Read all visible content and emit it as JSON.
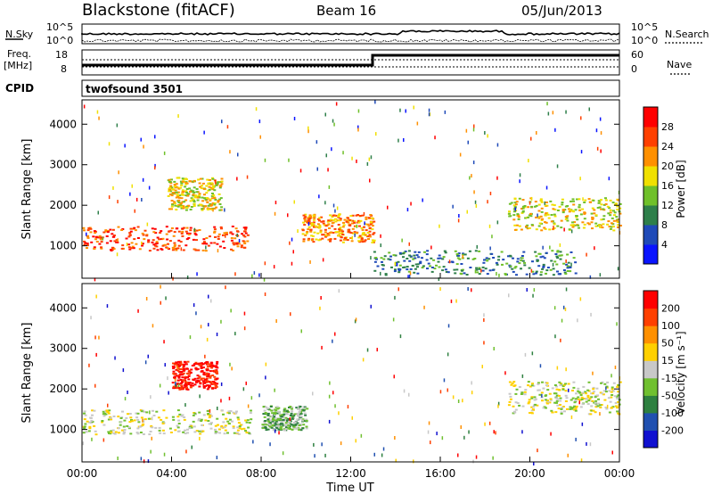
{
  "header": {
    "left": "Blackstone (fitACF)",
    "center": "Beam 16",
    "right": "05/Jun/2013"
  },
  "noise_panel": {
    "left_label": "N.Sky",
    "right_label": "N.Search",
    "left_ticks": [
      "10^5",
      "10^0"
    ],
    "right_ticks": [
      "10^5",
      "10^0"
    ]
  },
  "freq_panel": {
    "left_label_1": "Freq.",
    "left_label_2": "[MHz]",
    "left_ticks": [
      "18",
      "8"
    ],
    "right_label": "Nave",
    "right_ticks": [
      "60",
      "0"
    ]
  },
  "cpid_panel": {
    "label": "CPID",
    "value": "twofsound 3501"
  },
  "chart_data": [
    {
      "type": "heatmap",
      "name": "power",
      "ylabel": "Slant Range [km]",
      "ylim": [
        200,
        4600
      ],
      "yticks": [
        "1000",
        "2000",
        "3000",
        "4000"
      ],
      "xlim_hours": [
        0,
        24
      ],
      "colorbar_label": "Power [dB]",
      "colorbar_ticks": [
        "28",
        "24",
        "20",
        "16",
        "12",
        "8",
        "4"
      ],
      "colors": [
        "#0a14ff",
        "#1f4ab8",
        "#2e7f4a",
        "#6fc02a",
        "#f0e000",
        "#ff9000",
        "#ff4000",
        "#ff0000"
      ],
      "regions": [
        {
          "t0": 0.0,
          "t1": 7.5,
          "r_lo": 900,
          "r_hi": 1500,
          "level": 6
        },
        {
          "t0": 3.8,
          "t1": 6.2,
          "r_lo": 1900,
          "r_hi": 2700,
          "level": 4
        },
        {
          "t0": 9.8,
          "t1": 13.0,
          "r_lo": 1100,
          "r_hi": 1800,
          "level": 5
        },
        {
          "t0": 19.0,
          "t1": 24.0,
          "r_lo": 1400,
          "r_hi": 2200,
          "level": 4
        },
        {
          "t0": 13.0,
          "t1": 22.0,
          "r_lo": 300,
          "r_hi": 900,
          "level": 2
        }
      ]
    },
    {
      "type": "heatmap",
      "name": "velocity",
      "ylabel": "Slant Range [km]",
      "ylim": [
        200,
        4600
      ],
      "yticks": [
        "1000",
        "2000",
        "3000",
        "4000"
      ],
      "xlim_hours": [
        0,
        24
      ],
      "xticks": [
        "00:00",
        "04:00",
        "08:00",
        "12:00",
        "16:00",
        "20:00",
        "00:00"
      ],
      "xlabel": "Time UT",
      "colorbar_label": "Velocity [m s⁻¹]",
      "colorbar_ticks": [
        "200",
        "100",
        "50",
        "15",
        "-15",
        "-50",
        "-100",
        "-200"
      ],
      "colors": [
        "#1010d0",
        "#2050b0",
        "#2e8040",
        "#70c030",
        "#c8c8c8",
        "#ffd000",
        "#ff9000",
        "#ff4000",
        "#ff0000"
      ],
      "regions": [
        {
          "t0": 0.0,
          "t1": 7.5,
          "r_lo": 900,
          "r_hi": 1500,
          "level": 4
        },
        {
          "t0": 4.0,
          "t1": 6.0,
          "r_lo": 2000,
          "r_hi": 2700,
          "level": 8
        },
        {
          "t0": 8.0,
          "t1": 10.0,
          "r_lo": 1000,
          "r_hi": 1600,
          "level": 3
        },
        {
          "t0": 19.0,
          "t1": 24.0,
          "r_lo": 1400,
          "r_hi": 2200,
          "level": 4
        }
      ]
    }
  ]
}
